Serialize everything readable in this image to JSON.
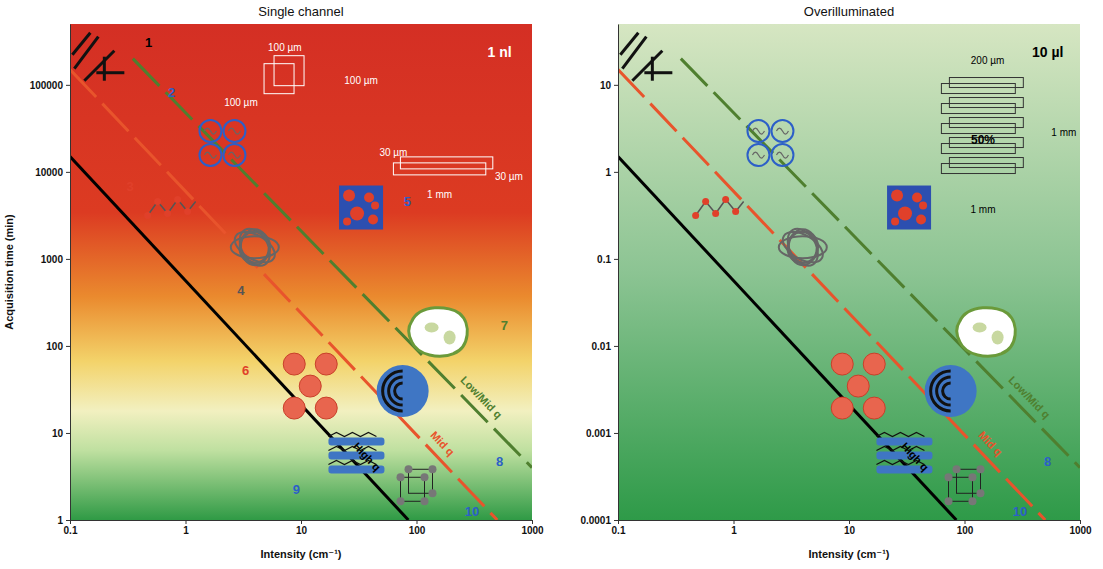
{
  "chart_data": [
    {
      "type": "line",
      "title": "Single channel",
      "x_label": "Intensity (cm⁻¹)",
      "y_label": "Acquisition time (min)",
      "log": true,
      "grid": false,
      "xlim": [
        0.1,
        1000
      ],
      "xticks": [
        0.1,
        1,
        10,
        100,
        1000
      ],
      "ylim": [
        1,
        500000
      ],
      "yticks": [
        1,
        10,
        100,
        1000,
        10000,
        100000
      ],
      "series": [
        {
          "name": "Low/Mid q",
          "color": "#4f7f2f",
          "line_style": "dashed",
          "x": [
            0.35,
            1000
          ],
          "values": [
            200000,
            4
          ]
        },
        {
          "name": "Mid q",
          "color": "#e8542c",
          "line_style": "dashed",
          "x": [
            0.1,
            500
          ],
          "values": [
            150000,
            1
          ]
        },
        {
          "name": "High q",
          "color": "#000000",
          "line_style": "solid",
          "x": [
            0.1,
            85
          ],
          "values": [
            15000,
            1
          ]
        }
      ],
      "annotations": [
        {
          "text": "1 nl"
        },
        {
          "text": "100 µm"
        },
        {
          "text": "100 µm"
        },
        {
          "text": "100 µm"
        },
        {
          "text": "30 µm"
        },
        {
          "text": "30 µm"
        },
        {
          "text": "1 mm"
        },
        {
          "text": "1"
        },
        {
          "text": "2"
        },
        {
          "text": "3"
        },
        {
          "text": "4"
        },
        {
          "text": "5"
        },
        {
          "text": "6"
        },
        {
          "text": "7"
        },
        {
          "text": "8"
        },
        {
          "text": "9"
        },
        {
          "text": "10"
        }
      ]
    },
    {
      "type": "line",
      "title": "Overilluminated",
      "x_label": "Intensity (cm⁻¹)",
      "log": true,
      "grid": false,
      "xlim": [
        0.1,
        1000
      ],
      "xticks": [
        0.1,
        1,
        10,
        100,
        1000
      ],
      "ylim": [
        0.0001,
        50
      ],
      "yticks": [
        0.0001,
        0.001,
        0.01,
        0.1,
        1,
        10
      ],
      "series": [
        {
          "name": "Low/Mid q",
          "color": "#4f7f2f",
          "line_style": "dashed",
          "x": [
            0.35,
            1000
          ],
          "values": [
            20,
            0.0004
          ]
        },
        {
          "name": "Mid q",
          "color": "#e8542c",
          "line_style": "dashed",
          "x": [
            0.1,
            500
          ],
          "values": [
            15,
            0.0001
          ]
        },
        {
          "name": "High q",
          "color": "#000000",
          "line_style": "solid",
          "x": [
            0.1,
            85
          ],
          "values": [
            1.5,
            0.0001
          ]
        }
      ],
      "annotations": [
        {
          "text": "10 µl"
        },
        {
          "text": "200 µm"
        },
        {
          "text": "50%"
        },
        {
          "text": "1 mm"
        },
        {
          "text": "1 mm"
        },
        {
          "text": "8"
        },
        {
          "text": "10"
        }
      ]
    }
  ]
}
